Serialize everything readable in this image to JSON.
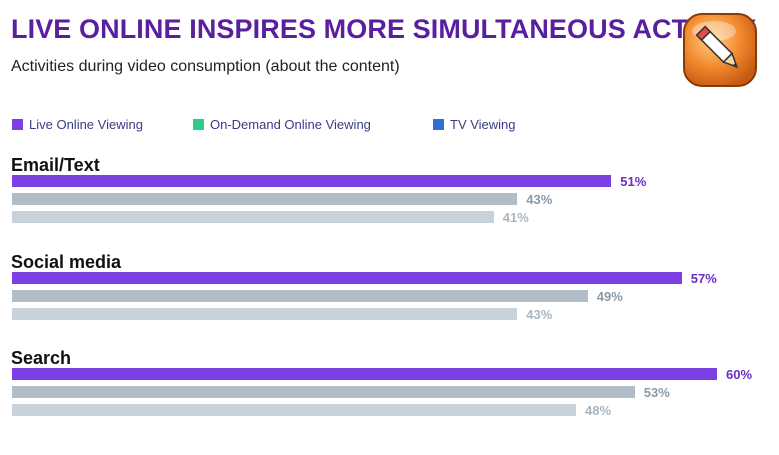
{
  "title": "LIVE ONLINE INSPIRES MORE SIMULTANEOUS ACTIVITY",
  "subtitle": "Activities during video consumption (about the content)",
  "logo_icon": "pencil-app-icon",
  "colors": {
    "live": "#7b3fe4",
    "ondemand_legend": "#2ecc8a",
    "tv_legend": "#2f6fd6",
    "ondemand_bar": "#b1bcc6",
    "tv_bar": "#c9d2da",
    "label_live": "#6a2fc0",
    "label_ondemand": "#8a9aa6",
    "label_tv": "#a9b6c0"
  },
  "legend": [
    {
      "label": "Live Online Viewing",
      "color": "#7b3fe4"
    },
    {
      "label": "On-Demand Online Viewing",
      "color": "#2ecc8a"
    },
    {
      "label": "TV Viewing",
      "color": "#2f6fd6"
    }
  ],
  "chart_data": {
    "type": "bar",
    "orientation": "horizontal",
    "title": "LIVE ONLINE INSPIRES MORE SIMULTANEOUS ACTIVITY",
    "subtitle": "Activities during video consumption (about the content)",
    "categories": [
      "Email/Text",
      "Social media",
      "Search"
    ],
    "series": [
      {
        "name": "Live Online Viewing",
        "values": [
          51,
          57,
          60
        ],
        "labels": [
          "51%",
          "57%",
          "60%"
        ]
      },
      {
        "name": "On-Demand Online Viewing",
        "values": [
          43,
          49,
          53
        ],
        "labels": [
          "43%",
          "49%",
          "53%"
        ]
      },
      {
        "name": "TV Viewing",
        "values": [
          41,
          43,
          48
        ],
        "labels": [
          "41%",
          "43%",
          "48%"
        ]
      }
    ],
    "unit": "%",
    "xlim": [
      0,
      100
    ],
    "legend_position": "top-left",
    "grid": false
  }
}
